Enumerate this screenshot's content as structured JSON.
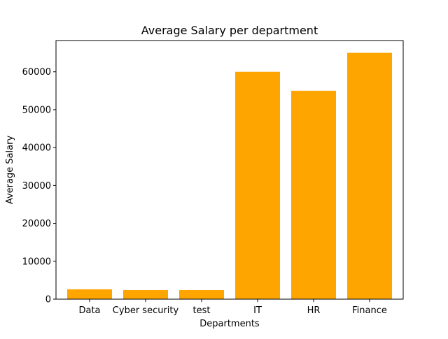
{
  "chart_data": {
    "type": "bar",
    "title": "Average Salary per department",
    "xlabel": "Departments",
    "ylabel": "Average Salary",
    "categories": [
      "Data",
      "Cyber security",
      "test",
      "IT",
      "HR",
      "Finance"
    ],
    "values": [
      2600,
      2400,
      2400,
      60000,
      55000,
      65000
    ],
    "ylim": [
      0,
      68250
    ],
    "yticks": [
      0,
      10000,
      20000,
      30000,
      40000,
      50000,
      60000
    ],
    "bar_color": "#FFA500",
    "grid": false,
    "legend": "none"
  }
}
